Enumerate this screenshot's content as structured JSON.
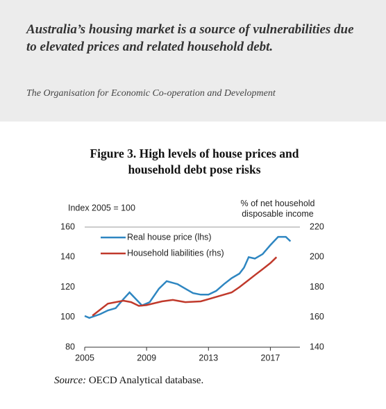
{
  "header": {
    "title": "Australia’s housing market is a source of vulnerabilities due to elevated prices and related household debt.",
    "subtitle": "The Organisation for Economic Co-operation and Development"
  },
  "chart_data": {
    "type": "line",
    "title": "Figure 3. High levels of house prices and household debt pose risks",
    "y_label": "Index 2005 = 100",
    "y2_label": "% of net household disposable income",
    "xlim": [
      2005,
      2019
    ],
    "xticks": [
      2005,
      2009,
      2013,
      2017
    ],
    "ylim": [
      80,
      160
    ],
    "yticks": [
      80,
      100,
      120,
      140,
      160
    ],
    "y2lim": [
      140,
      220
    ],
    "y2ticks": [
      140,
      160,
      180,
      200,
      220
    ],
    "series": [
      {
        "name": "Real house price (lhs)",
        "color": "#2e86c1",
        "x": [
          2005,
          2005.3,
          2006,
          2006.5,
          2007,
          2007.5,
          2007.9,
          2008.7,
          2009.2,
          2009.8,
          2010.3,
          2011,
          2011.5,
          2012,
          2012.5,
          2013,
          2013.5,
          2014,
          2014.5,
          2015,
          2015.3,
          2015.6,
          2016,
          2016.5,
          2017,
          2017.5,
          2018,
          2018.3
        ],
        "values": [
          100.8,
          99.5,
          102,
          104.5,
          106,
          112,
          116.5,
          107.8,
          110,
          119,
          124,
          122,
          119,
          116,
          115,
          115,
          117.5,
          122,
          126,
          129,
          133,
          140,
          139,
          142,
          148,
          153.5,
          153.5,
          150.5
        ]
      },
      {
        "name": "Household liabilities (rhs)",
        "color": "#c0392b",
        "axis": "y2",
        "x": [
          2005.5,
          2006.5,
          2007.5,
          2008,
          2008.5,
          2009,
          2010,
          2010.7,
          2011.5,
          2012.5,
          2013,
          2014,
          2014.5,
          2015,
          2015.5,
          2016,
          2016.5,
          2017,
          2017.4
        ],
        "values": [
          161,
          169,
          171,
          170,
          167.5,
          168,
          170.5,
          171.5,
          170,
          170.5,
          172,
          175,
          176.5,
          180,
          184,
          188,
          192,
          196,
          200
        ]
      }
    ],
    "source_label": "Source:",
    "source_text": "OECD Analytical database."
  }
}
